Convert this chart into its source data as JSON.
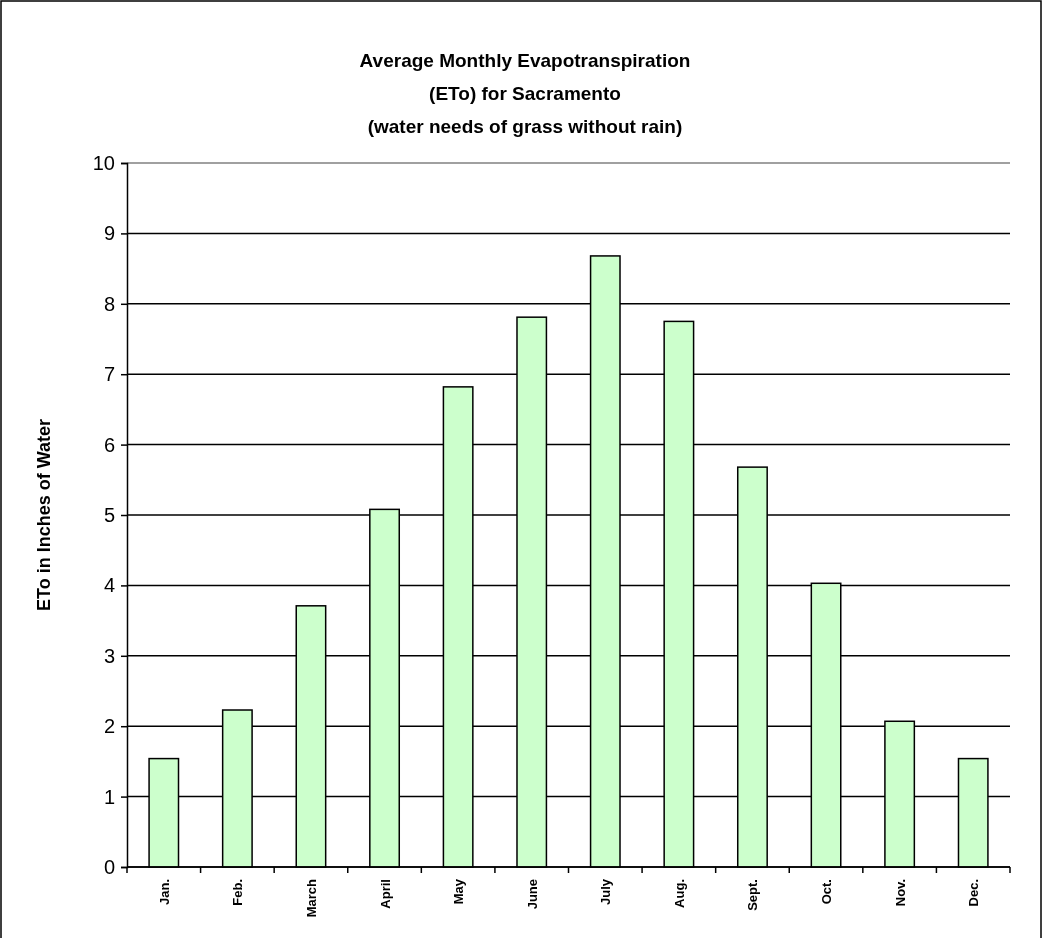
{
  "chart_data": {
    "type": "bar",
    "title": "Average Monthly Evapotranspiration\n(ETo) for Sacramento\n(water needs of grass without rain)",
    "ylabel": "ETo in Inches of Water",
    "categories": [
      "Jan.",
      "Feb.",
      "March",
      "April",
      "May",
      "June",
      "July",
      "Aug.",
      "Sept.",
      "Oct.",
      "Nov.",
      "Dec."
    ],
    "values": [
      1.54,
      2.23,
      3.71,
      5.08,
      6.82,
      7.81,
      8.68,
      7.75,
      5.68,
      4.03,
      2.07,
      1.54
    ],
    "color": "#ccffcc",
    "ylim": [
      0,
      10
    ],
    "yticks": [
      0,
      1,
      2,
      3,
      4,
      5,
      6,
      7,
      8,
      9,
      10
    ],
    "grid": "y"
  }
}
